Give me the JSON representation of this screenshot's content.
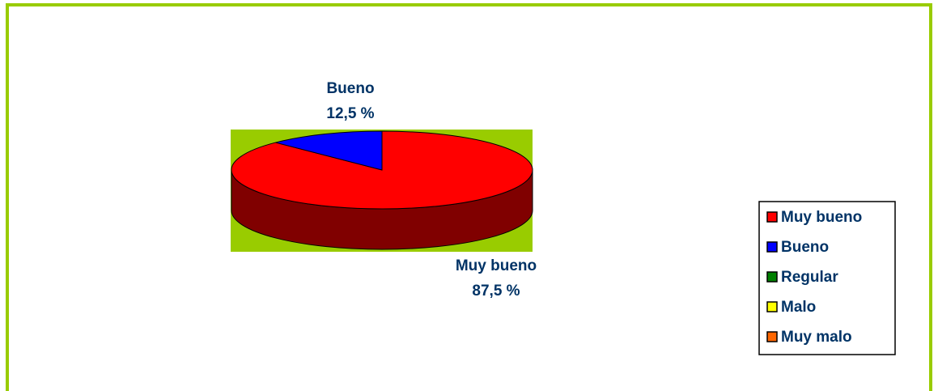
{
  "chart_data": {
    "type": "pie",
    "categories": [
      "Muy bueno",
      "Bueno",
      "Regular",
      "Malo",
      "Muy malo"
    ],
    "values": [
      87.5,
      12.5,
      0,
      0,
      0
    ],
    "value_labels": [
      "87,5 %",
      "12,5 %",
      null,
      null,
      null
    ],
    "colors": [
      "#ff0000",
      "#0000ff",
      "#008000",
      "#ffff00",
      "#ff6600"
    ],
    "three_d": true,
    "legend": "right"
  }
}
